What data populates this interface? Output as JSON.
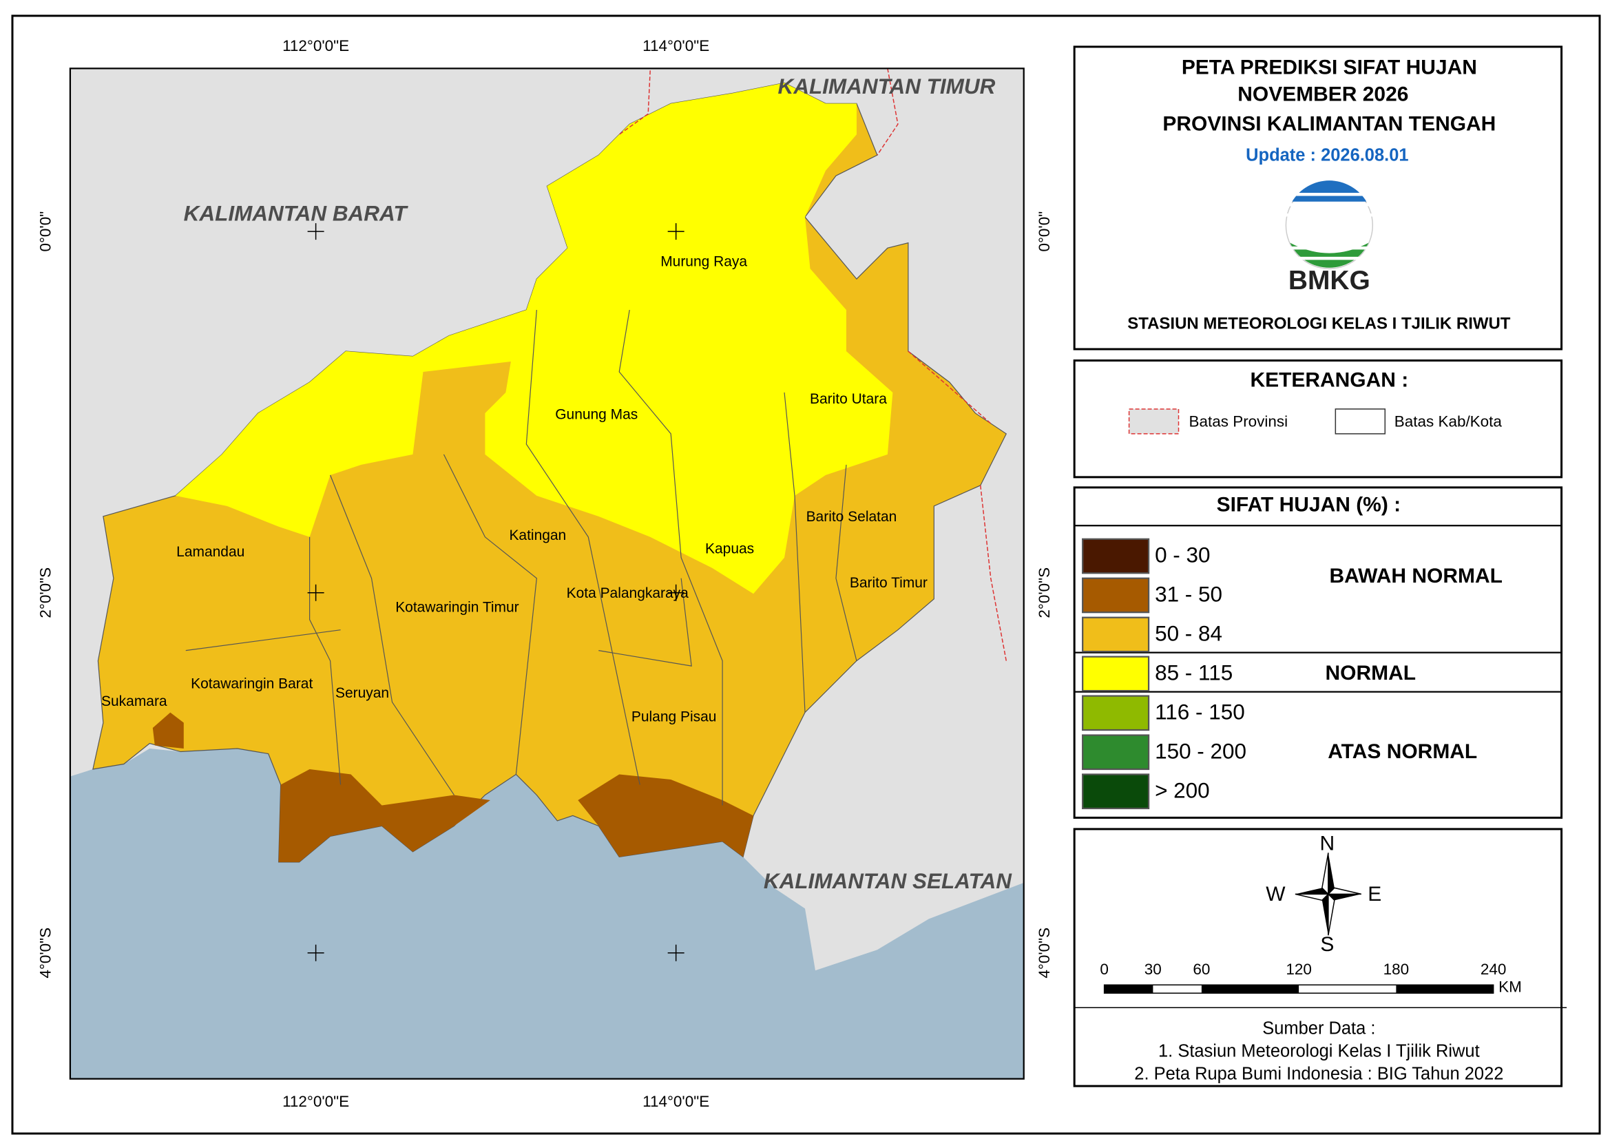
{
  "map": {
    "graticule": {
      "top": [
        "112°0'0\"E",
        "114°0'0\"E"
      ],
      "bottom": [
        "112°0'0\"E",
        "114°0'0\"E"
      ],
      "left": [
        "0°0'0\"",
        "2°0'0\"S",
        "4°0'0\"S"
      ],
      "right": [
        "0°0'0\"",
        "2°0'0\"S",
        "4°0'0\"S"
      ]
    },
    "neighbor_labels": [
      "KALIMANTAN TIMUR",
      "KALIMANTAN BARAT",
      "KALIMANTAN SELATAN"
    ],
    "district_labels": [
      "Murung Raya",
      "Gunung Mas",
      "Barito Utara",
      "Katingan",
      "Kapuas",
      "Barito Selatan",
      "Lamandau",
      "Kotawaringin Timur",
      "Kota Palangkaraya",
      "Barito Timur",
      "Sukamara",
      "Kotawaringin Barat",
      "Seruyan",
      "Pulang Pisau"
    ]
  },
  "title": {
    "lines": [
      "PETA PREDIKSI SIFAT HUJAN",
      "NOVEMBER 2026",
      "PROVINSI KALIMANTAN TENGAH"
    ],
    "update": "Update : 2026.08.01",
    "logo_text": "BMKG",
    "station": "STASIUN METEOROLOGI KELAS I TJILIK RIWUT"
  },
  "keterangan": {
    "title": "KETERANGAN :",
    "items": [
      "Batas Provinsi",
      "Batas Kab/Kota"
    ]
  },
  "sifat_hujan": {
    "title": "SIFAT HUJAN (%) :",
    "classes": [
      {
        "label": "0 - 30",
        "color": "#4a1800"
      },
      {
        "label": "31 - 50",
        "color": "#a65a00"
      },
      {
        "label": "50 - 84",
        "color": "#f0be1a"
      },
      {
        "label": "85 - 115",
        "color": "#ffff00"
      },
      {
        "label": "116 - 150",
        "color": "#8fba00"
      },
      {
        "label": "150 - 200",
        "color": "#2e8b2e"
      },
      {
        "label": "> 200",
        "color": "#0a4a0a"
      }
    ],
    "groups": [
      "BAWAH NORMAL",
      "NORMAL",
      "ATAS NORMAL"
    ]
  },
  "north_arrow": {
    "n": "N",
    "s": "S",
    "e": "E",
    "w": "W"
  },
  "scale_bar": {
    "labels": [
      0,
      30,
      60,
      120,
      180,
      240
    ],
    "unit": "KM"
  },
  "source": {
    "title": "Sumber Data :",
    "lines": [
      "1. Stasiun Meteorologi Kelas I Tjilik Riwut",
      "2. Peta Rupa Bumi Indonesia : BIG Tahun 2022"
    ]
  }
}
